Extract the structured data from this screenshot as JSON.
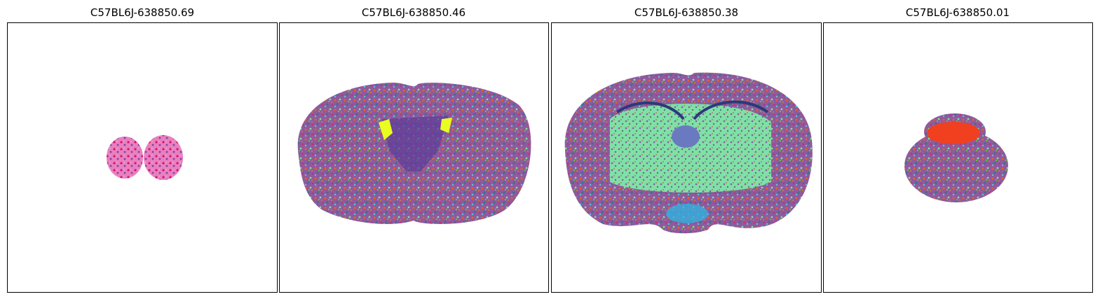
{
  "panels": [
    {
      "title": "C57BL6J-638850.69"
    },
    {
      "title": "C57BL6J-638850.46"
    },
    {
      "title": "C57BL6J-638850.38"
    },
    {
      "title": "C57BL6J-638850.01"
    }
  ]
}
